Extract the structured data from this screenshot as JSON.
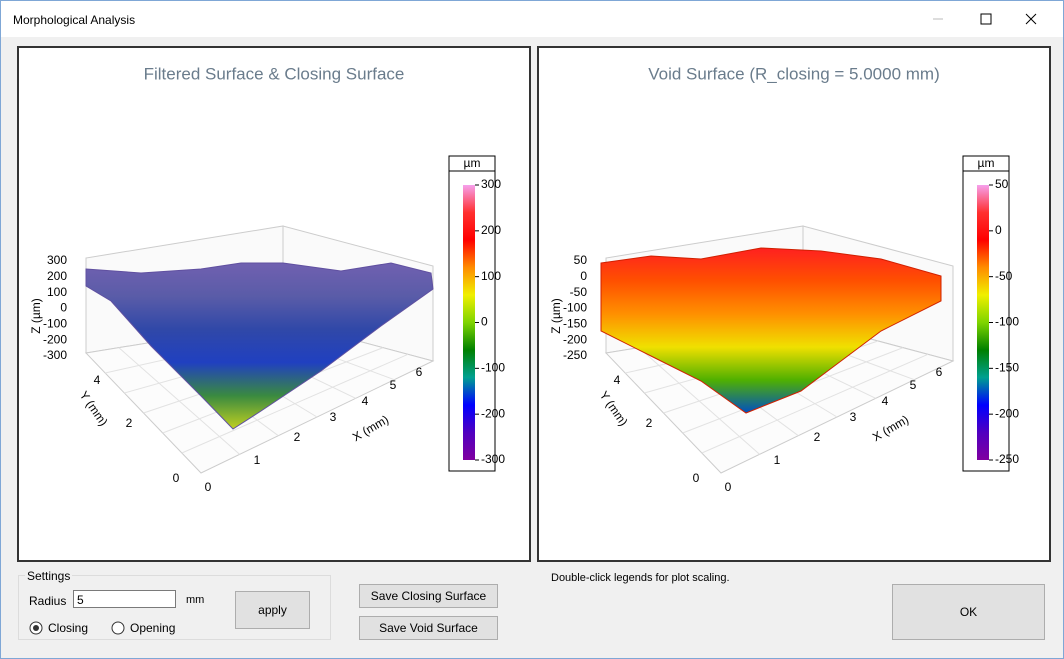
{
  "window": {
    "title": "Morphological Analysis"
  },
  "plots": [
    {
      "title": "Filtered Surface & Closing Surface",
      "legend": {
        "unit": "µm",
        "ticks": [
          300,
          200,
          100,
          0,
          -100,
          -200,
          -300
        ]
      },
      "z_label": "Z (µm)",
      "z_ticks": [
        300,
        200,
        100,
        0,
        -100,
        -200,
        -300
      ],
      "y_label": "Y (mm)",
      "y_ticks": [
        4,
        2,
        0
      ],
      "x_label": "X (mm)",
      "x_ticks": [
        0,
        1,
        2,
        3,
        4,
        5,
        6
      ]
    },
    {
      "title": "Void Surface (R_closing = 5.0000 mm)",
      "legend": {
        "unit": "µm",
        "ticks": [
          50,
          0,
          -50,
          -100,
          -150,
          -200,
          -250
        ]
      },
      "z_label": "Z (µm)",
      "z_ticks": [
        50,
        0,
        -50,
        -100,
        -150,
        -200,
        -250
      ],
      "y_label": "Y (mm)",
      "y_ticks": [
        4,
        2,
        0
      ],
      "x_label": "X (mm)",
      "x_ticks": [
        0,
        1,
        2,
        3,
        4,
        5,
        6
      ]
    }
  ],
  "settings": {
    "group_label": "Settings",
    "radius_label": "Radius",
    "radius_value": "5",
    "unit": "mm",
    "apply": "apply",
    "closing": "Closing",
    "opening": "Opening"
  },
  "buttons": {
    "save_closing": "Save Closing Surface",
    "save_void": "Save Void Surface",
    "ok": "OK"
  },
  "hint": "Double-click legends for plot scaling."
}
